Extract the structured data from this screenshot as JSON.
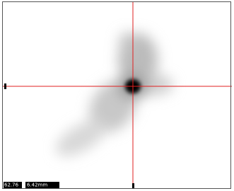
{
  "status": {
    "readout_left": "62.76",
    "readout_right": "6.42mm"
  }
}
